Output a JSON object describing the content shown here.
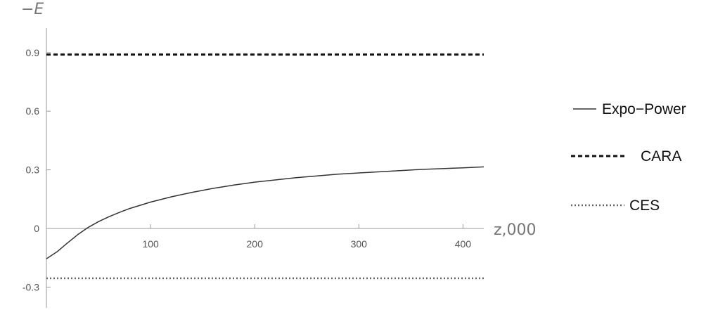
{
  "chart_data": {
    "type": "line",
    "title": "",
    "xlabel": "z,000",
    "ylabel": "−E",
    "xlim": [
      0,
      420
    ],
    "ylim": [
      -0.3,
      0.9
    ],
    "xticks": [
      100,
      200,
      300,
      400
    ],
    "yticks": [
      -0.3,
      0,
      0.3,
      0.6,
      0.9
    ],
    "xtick_labels": [
      "100",
      "200",
      "300",
      "400"
    ],
    "ytick_labels": [
      "-0.3",
      "0",
      "0.3",
      "0.6",
      "0.9"
    ],
    "grid": false,
    "legend_position": "right",
    "series": [
      {
        "name": "Expo−Power",
        "style": "solid",
        "color": "#333333",
        "x": [
          0,
          10,
          20,
          30,
          40,
          50,
          60,
          70,
          80,
          100,
          120,
          140,
          160,
          180,
          200,
          240,
          280,
          320,
          360,
          400,
          420
        ],
        "y": [
          -0.155,
          -0.12,
          -0.075,
          -0.032,
          0.005,
          0.035,
          0.06,
          0.082,
          0.102,
          0.135,
          0.162,
          0.185,
          0.205,
          0.222,
          0.237,
          0.26,
          0.278,
          0.29,
          0.302,
          0.31,
          0.315
        ]
      },
      {
        "name": "CARA",
        "style": "dashed",
        "color": "#111111",
        "x": [
          0,
          420
        ],
        "y": [
          0.89,
          0.89
        ]
      },
      {
        "name": "CES",
        "style": "dotted",
        "color": "#666666",
        "x": [
          0,
          420
        ],
        "y": [
          -0.255,
          -0.255
        ]
      }
    ]
  }
}
